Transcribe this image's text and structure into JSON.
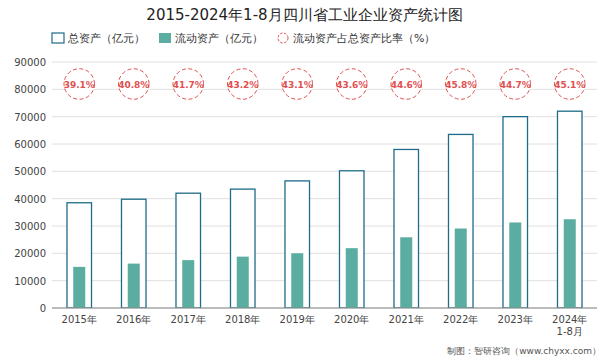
{
  "chart_data": {
    "type": "bar",
    "title": "2015-2024年1-8月四川省工业企业资产统计图",
    "categories": [
      "2015年",
      "2016年",
      "2017年",
      "2018年",
      "2019年",
      "2020年",
      "2021年",
      "2022年",
      "2023年",
      "2024年\n1-8月"
    ],
    "series": [
      {
        "name": "总资产（亿元）",
        "type": "bar",
        "color": "#1e6b8a",
        "values": [
          38500,
          39800,
          42000,
          43500,
          46500,
          50200,
          58000,
          63500,
          70000,
          72000
        ]
      },
      {
        "name": "流动资产（亿元）",
        "type": "bar",
        "color": "#5aada0",
        "values": [
          15054,
          16238,
          17514,
          18792,
          20042,
          21887,
          25868,
          29083,
          31290,
          32472
        ]
      },
      {
        "name": "流动资产占总资产比率（%）",
        "type": "annotation",
        "color": "#e05050",
        "marker": "circle",
        "line_style": "dashed",
        "values": [
          39.1,
          40.8,
          41.7,
          43.2,
          43.1,
          43.6,
          44.6,
          45.8,
          44.7,
          45.1
        ],
        "value_labels": [
          "39.1%",
          "40.8%",
          "41.7%",
          "43.2%",
          "43.1%",
          "43.6%",
          "44.6%",
          "45.8%",
          "44.7%",
          "45.1%"
        ],
        "data_labels": true
      }
    ],
    "ylim": [
      0,
      90000
    ],
    "yticks": [
      0,
      10000,
      20000,
      30000,
      40000,
      50000,
      60000,
      70000,
      80000,
      90000
    ],
    "grid": true,
    "legend": "top",
    "annotations": [
      "制图：智研咨询（www.chyxx.com）"
    ]
  }
}
